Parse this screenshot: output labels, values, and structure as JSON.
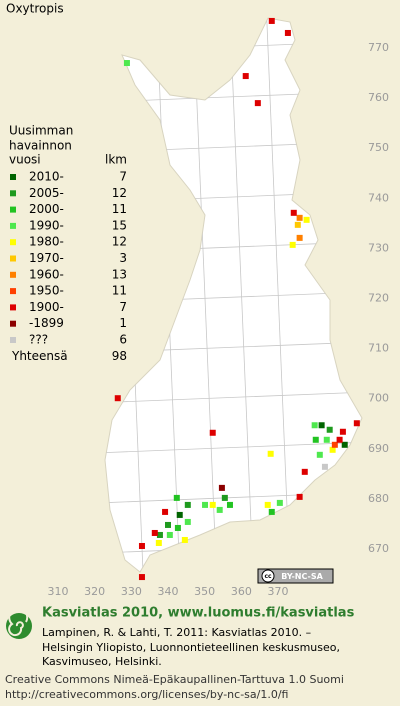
{
  "title": "Oxytropis",
  "legend": {
    "heading": [
      "Uusimman",
      "havainnon",
      "vuosi"
    ],
    "count_heading": "lkm",
    "items": [
      {
        "label": "2010-",
        "count": 7,
        "color": "#006400",
        "points": [
          [
            381.9,
            694.7
          ],
          [
            388.2,
            690.8
          ],
          [
            343.2,
            676.8
          ]
        ]
      },
      {
        "label": "2005-",
        "count": 12,
        "color": "#1e9a1e",
        "points": [
          [
            384.1,
            693.8
          ],
          [
            355.5,
            680.2
          ],
          [
            345.4,
            678.8
          ],
          [
            340.0,
            674.8
          ],
          [
            337.8,
            672.8
          ]
        ]
      },
      {
        "label": "2000-",
        "count": 11,
        "color": "#22c322",
        "points": [
          [
            380.3,
            691.8
          ],
          [
            356.9,
            678.8
          ],
          [
            368.3,
            677.4
          ],
          [
            342.4,
            680.2
          ],
          [
            342.7,
            674.2
          ]
        ]
      },
      {
        "label": "1990-",
        "count": 15,
        "color": "#4ee84e",
        "points": [
          [
            328.8,
            767.0
          ],
          [
            380.0,
            694.7
          ],
          [
            383.3,
            691.8
          ],
          [
            381.4,
            688.8
          ],
          [
            354.1,
            677.8
          ],
          [
            350.1,
            678.8
          ],
          [
            370.5,
            679.2
          ],
          [
            345.4,
            675.4
          ],
          [
            340.5,
            672.8
          ]
        ]
      },
      {
        "label": "1980-",
        "count": 12,
        "color": "#ffff00",
        "points": [
          [
            377.8,
            735.7
          ],
          [
            374.0,
            730.7
          ],
          [
            384.9,
            689.8
          ],
          [
            368.0,
            689.0
          ],
          [
            352.2,
            678.8
          ],
          [
            367.2,
            678.8
          ],
          [
            337.5,
            671.2
          ],
          [
            344.6,
            671.8
          ]
        ]
      },
      {
        "label": "1970-",
        "count": 3,
        "color": "#ffc800",
        "points": [
          [
            375.4,
            734.7
          ]
        ]
      },
      {
        "label": "1960-",
        "count": 13,
        "color": "#ff8000",
        "points": [
          [
            375.9,
            736.1
          ],
          [
            375.9,
            732.1
          ]
        ]
      },
      {
        "label": "1950-",
        "count": 11,
        "color": "#ff4000",
        "points": [
          [
            385.5,
            690.8
          ]
        ]
      },
      {
        "label": "1900-",
        "count": 7,
        "color": "#dd0000",
        "points": [
          [
            368.3,
            775.4
          ],
          [
            372.7,
            773.0
          ],
          [
            361.2,
            764.4
          ],
          [
            364.5,
            759.0
          ],
          [
            374.3,
            737.1
          ],
          [
            326.3,
            700.1
          ],
          [
            352.2,
            693.2
          ],
          [
            391.5,
            695.1
          ],
          [
            387.7,
            693.4
          ],
          [
            386.8,
            691.8
          ],
          [
            377.3,
            685.4
          ],
          [
            375.9,
            680.4
          ],
          [
            339.2,
            677.4
          ],
          [
            336.4,
            673.2
          ],
          [
            332.9,
            670.6
          ],
          [
            332.9,
            664.4
          ]
        ]
      },
      {
        "label": "-1899",
        "count": 1,
        "color": "#8b0000",
        "points": [
          [
            354.7,
            682.2
          ]
        ]
      },
      {
        "label": "???",
        "count": 6,
        "color": "#c8c8c8",
        "points": [
          [
            382.8,
            686.4
          ]
        ]
      }
    ],
    "total_label": "Yhteensä",
    "total": 98
  },
  "map": {
    "xticks": [
      310,
      320,
      330,
      340,
      350,
      360,
      370
    ],
    "yticks": [
      770,
      760,
      750,
      740,
      730,
      720,
      710,
      700,
      690,
      680,
      670
    ]
  },
  "badge": {
    "cc": "cc",
    "license": "BY-NC-SA"
  },
  "footer": {
    "heading": "Kasviatlas 2010, www.luomus.fi/kasviatlas",
    "citation": [
      "Lampinen, R. & Lahti, T. 2011: Kasviatlas 2010. –",
      "Helsingin Yliopisto, Luonnontieteellinen keskusmuseo,",
      "Kasvimuseo, Helsinki."
    ],
    "license": [
      "Creative Commons Nimeä-Epäkaupallinen-Tarttuva 1.0 Suomi",
      "http://creativecommons.org/licenses/by-nc-sa/1.0/fi"
    ]
  }
}
